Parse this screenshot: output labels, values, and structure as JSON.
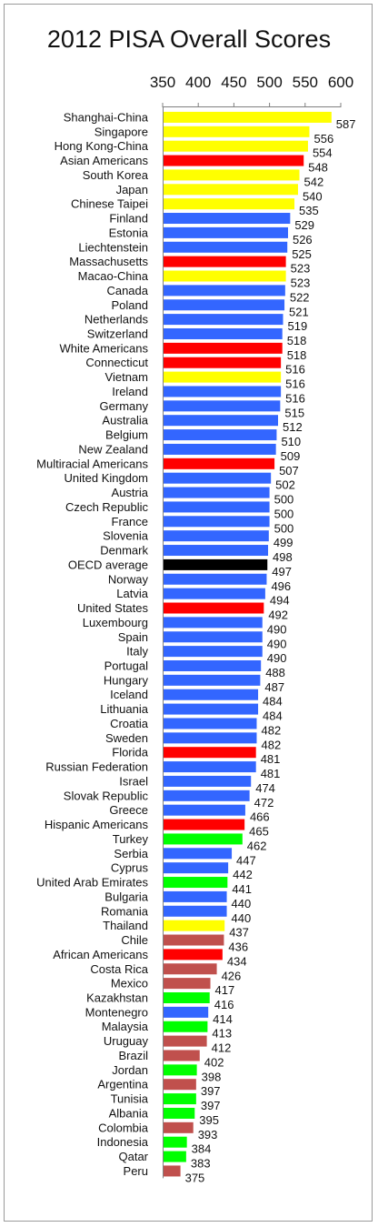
{
  "chart_data": {
    "type": "bar",
    "orientation": "horizontal",
    "title": "2012 PISA Overall Scores",
    "xlabel": "",
    "ylabel": "",
    "xlim": [
      350,
      600
    ],
    "xticks": [
      "350",
      "400",
      "450",
      "500",
      "550",
      "600"
    ],
    "tick_position": "top",
    "grid": false,
    "legend": "none",
    "colors": {
      "yellow": "#ffff00",
      "blue": "#3366ff",
      "red": "#ff0000",
      "black": "#000000",
      "green": "#00ff00",
      "brown": "#c0504d"
    },
    "bars": [
      {
        "label": "Shanghai-China",
        "value": 587,
        "color": "yellow"
      },
      {
        "label": "Singapore",
        "value": 556,
        "color": "yellow"
      },
      {
        "label": "Hong Kong-China",
        "value": 554,
        "color": "yellow"
      },
      {
        "label": "Asian Americans",
        "value": 548,
        "color": "red"
      },
      {
        "label": "South Korea",
        "value": 542,
        "color": "yellow"
      },
      {
        "label": "Japan",
        "value": 540,
        "color": "yellow"
      },
      {
        "label": "Chinese Taipei",
        "value": 535,
        "color": "yellow"
      },
      {
        "label": "Finland",
        "value": 529,
        "color": "blue"
      },
      {
        "label": "Estonia",
        "value": 526,
        "color": "blue"
      },
      {
        "label": "Liechtenstein",
        "value": 525,
        "color": "blue"
      },
      {
        "label": "Massachusetts",
        "value": 523,
        "color": "red"
      },
      {
        "label": "Macao-China",
        "value": 523,
        "color": "yellow"
      },
      {
        "label": "Canada",
        "value": 522,
        "color": "blue"
      },
      {
        "label": "Poland",
        "value": 521,
        "color": "blue"
      },
      {
        "label": "Netherlands",
        "value": 519,
        "color": "blue"
      },
      {
        "label": "Switzerland",
        "value": 518,
        "color": "blue"
      },
      {
        "label": "White Americans",
        "value": 518,
        "color": "red"
      },
      {
        "label": "Connecticut",
        "value": 516,
        "color": "red"
      },
      {
        "label": "Vietnam",
        "value": 516,
        "color": "yellow"
      },
      {
        "label": "Ireland",
        "value": 516,
        "color": "blue"
      },
      {
        "label": "Germany",
        "value": 515,
        "color": "blue"
      },
      {
        "label": "Australia",
        "value": 512,
        "color": "blue"
      },
      {
        "label": "Belgium",
        "value": 510,
        "color": "blue"
      },
      {
        "label": "New Zealand",
        "value": 509,
        "color": "blue"
      },
      {
        "label": "Multiracial Americans",
        "value": 507,
        "color": "red"
      },
      {
        "label": "United Kingdom",
        "value": 502,
        "color": "blue"
      },
      {
        "label": "Austria",
        "value": 500,
        "color": "blue"
      },
      {
        "label": "Czech Republic",
        "value": 500,
        "color": "blue"
      },
      {
        "label": "France",
        "value": 500,
        "color": "blue"
      },
      {
        "label": "Slovenia",
        "value": 499,
        "color": "blue"
      },
      {
        "label": "Denmark",
        "value": 498,
        "color": "blue"
      },
      {
        "label": "OECD average",
        "value": 497,
        "color": "black"
      },
      {
        "label": "Norway",
        "value": 496,
        "color": "blue"
      },
      {
        "label": "Latvia",
        "value": 494,
        "color": "blue"
      },
      {
        "label": "United States",
        "value": 492,
        "color": "red"
      },
      {
        "label": "Luxembourg",
        "value": 490,
        "color": "blue"
      },
      {
        "label": "Spain",
        "value": 490,
        "color": "blue"
      },
      {
        "label": "Italy",
        "value": 490,
        "color": "blue"
      },
      {
        "label": "Portugal",
        "value": 488,
        "color": "blue"
      },
      {
        "label": "Hungary",
        "value": 487,
        "color": "blue"
      },
      {
        "label": "Iceland",
        "value": 484,
        "color": "blue"
      },
      {
        "label": "Lithuania",
        "value": 484,
        "color": "blue"
      },
      {
        "label": "Croatia",
        "value": 482,
        "color": "blue"
      },
      {
        "label": "Sweden",
        "value": 482,
        "color": "blue"
      },
      {
        "label": "Florida",
        "value": 481,
        "color": "red"
      },
      {
        "label": "Russian Federation",
        "value": 481,
        "color": "blue"
      },
      {
        "label": "Israel",
        "value": 474,
        "color": "blue"
      },
      {
        "label": "Slovak Republic",
        "value": 472,
        "color": "blue"
      },
      {
        "label": "Greece",
        "value": 466,
        "color": "blue"
      },
      {
        "label": "Hispanic Americans",
        "value": 465,
        "color": "red"
      },
      {
        "label": "Turkey",
        "value": 462,
        "color": "green"
      },
      {
        "label": "Serbia",
        "value": 447,
        "color": "blue"
      },
      {
        "label": "Cyprus",
        "value": 442,
        "color": "blue"
      },
      {
        "label": "United Arab Emirates",
        "value": 441,
        "color": "green"
      },
      {
        "label": "Bulgaria",
        "value": 440,
        "color": "blue"
      },
      {
        "label": "Romania",
        "value": 440,
        "color": "blue"
      },
      {
        "label": "Thailand",
        "value": 437,
        "color": "yellow"
      },
      {
        "label": "Chile",
        "value": 436,
        "color": "brown"
      },
      {
        "label": "African Americans",
        "value": 434,
        "color": "red"
      },
      {
        "label": "Costa Rica",
        "value": 426,
        "color": "brown"
      },
      {
        "label": "Mexico",
        "value": 417,
        "color": "brown"
      },
      {
        "label": "Kazakhstan",
        "value": 416,
        "color": "green"
      },
      {
        "label": "Montenegro",
        "value": 414,
        "color": "blue"
      },
      {
        "label": "Malaysia",
        "value": 413,
        "color": "green"
      },
      {
        "label": "Uruguay",
        "value": 412,
        "color": "brown"
      },
      {
        "label": "Brazil",
        "value": 402,
        "color": "brown"
      },
      {
        "label": "Jordan",
        "value": 398,
        "color": "green"
      },
      {
        "label": "Argentina",
        "value": 397,
        "color": "brown"
      },
      {
        "label": "Tunisia",
        "value": 397,
        "color": "green"
      },
      {
        "label": "Albania",
        "value": 395,
        "color": "green"
      },
      {
        "label": "Colombia",
        "value": 393,
        "color": "brown"
      },
      {
        "label": "Indonesia",
        "value": 384,
        "color": "green"
      },
      {
        "label": "Qatar",
        "value": 383,
        "color": "green"
      },
      {
        "label": "Peru",
        "value": 375,
        "color": "brown"
      }
    ]
  }
}
